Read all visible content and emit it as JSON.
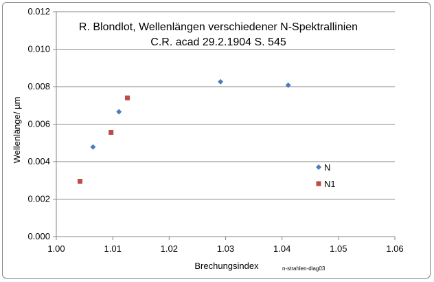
{
  "chart_data": {
    "type": "scatter",
    "title": [
      "R. Blondlot, Wellenlängen verschiedener N-Spektrallinien",
      "C.R. acad 29.2.1904 S. 545"
    ],
    "xlabel": "Brechungsindex",
    "ylabel": "Wellenlänge/ µm",
    "xlim": [
      1.0,
      1.06
    ],
    "ylim": [
      0,
      0.012
    ],
    "x_ticks": [
      "1.00",
      "1.01",
      "1.02",
      "1.03",
      "1.04",
      "1.05",
      "1.06"
    ],
    "y_ticks": [
      "0.000",
      "0.002",
      "0.004",
      "0.006",
      "0.008",
      "0.010",
      "0.012"
    ],
    "grid": "horizontal",
    "legend_position": "right",
    "annotation": "n-strahlen-diag03",
    "series": [
      {
        "name": "N",
        "color": "#4a7ebb",
        "marker": "diamond",
        "points": [
          [
            1.0065,
            0.00478
          ],
          [
            1.0111,
            0.00666
          ],
          [
            1.0291,
            0.00826
          ],
          [
            1.0411,
            0.00808
          ]
        ]
      },
      {
        "name": "N1",
        "color": "#be4b48",
        "marker": "square",
        "points": [
          [
            1.0042,
            0.00295
          ],
          [
            1.0097,
            0.00556
          ],
          [
            1.0126,
            0.0074
          ]
        ]
      }
    ]
  }
}
